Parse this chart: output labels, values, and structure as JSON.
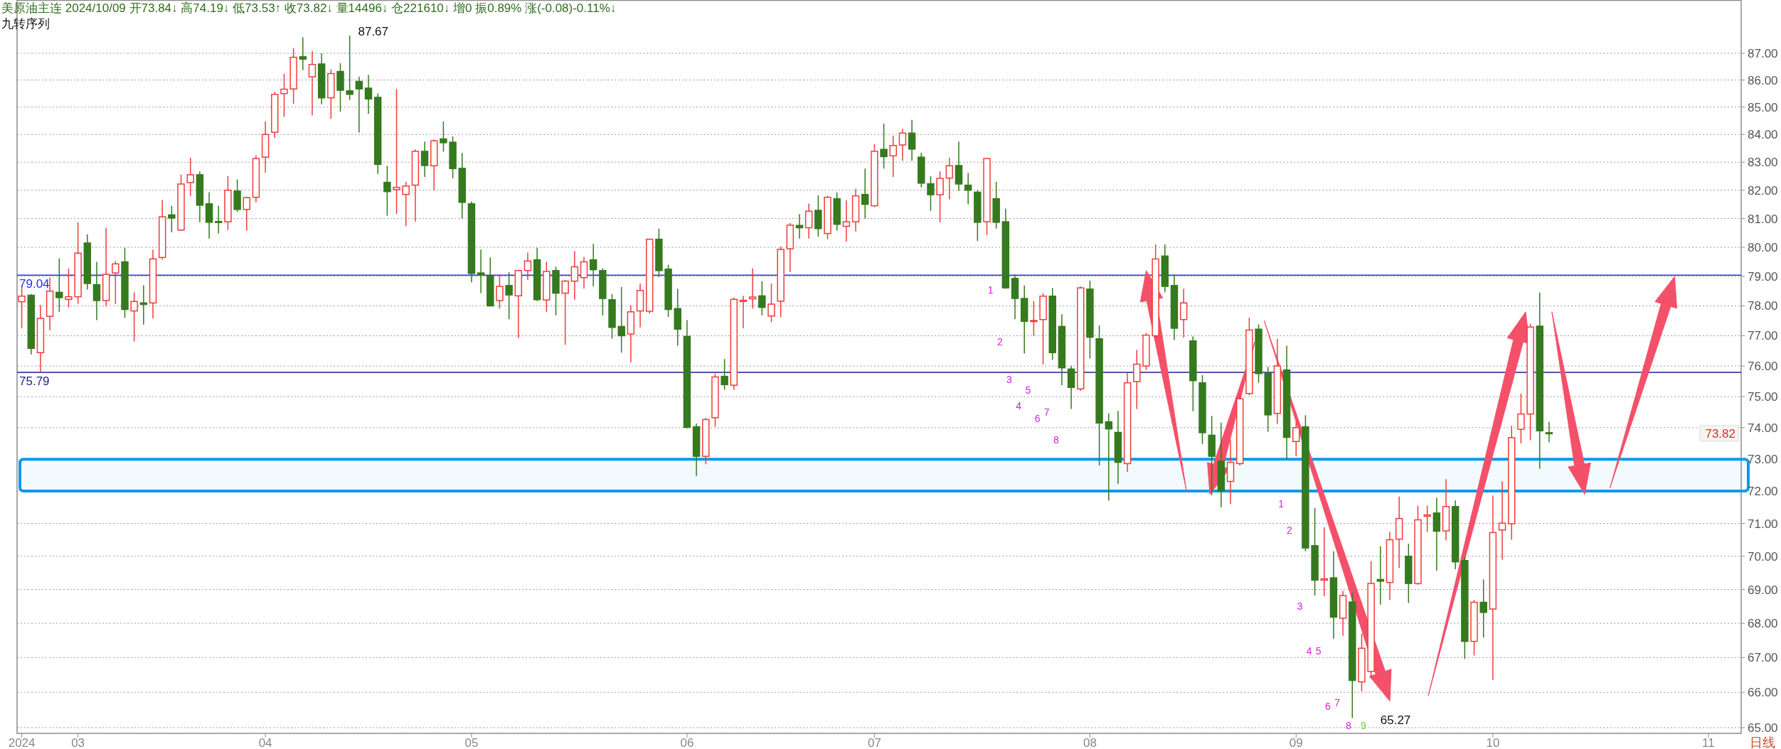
{
  "chart_data": {
    "type": "candlestick",
    "title": "美原油主连 2024/10/09 开73.84↓ 高74.19↓ 低73.53↑ 收73.82↓ 量14496↓ 仓221610↓ 增0 振0.89% 涨(-0.08)-0.11%↓",
    "subtitle": "九转序列",
    "categories": [
      "2024",
      null,
      null,
      null,
      null,
      null,
      "03",
      null,
      null,
      null,
      null,
      null,
      null,
      null,
      null,
      null,
      null,
      null,
      null,
      null,
      null,
      null,
      null,
      null,
      null,
      null,
      "04",
      null,
      null,
      null,
      null,
      null,
      null,
      null,
      null,
      null,
      null,
      null,
      null,
      null,
      null,
      null,
      null,
      null,
      null,
      null,
      null,
      null,
      "05",
      null,
      null,
      null,
      null,
      null,
      null,
      null,
      null,
      null,
      null,
      null,
      null,
      null,
      null,
      null,
      null,
      null,
      null,
      null,
      null,
      null,
      null,
      "06",
      null,
      null,
      null,
      null,
      null,
      null,
      null,
      null,
      null,
      null,
      null,
      null,
      null,
      null,
      null,
      null,
      null,
      null,
      null,
      "07",
      null,
      null,
      null,
      null,
      null,
      null,
      null,
      null,
      null,
      null,
      null,
      null,
      null,
      null,
      null,
      null,
      null,
      null,
      null,
      null,
      null,
      null,
      "08",
      null,
      null,
      null,
      null,
      null,
      null,
      null,
      null,
      null,
      null,
      null,
      null,
      null,
      null,
      null,
      null,
      null,
      null,
      null,
      null,
      null,
      "09",
      null,
      null,
      null,
      null,
      null,
      null,
      null,
      null,
      null,
      null,
      null,
      null,
      null,
      null,
      null,
      null,
      null,
      null,
      null,
      null,
      "10",
      null,
      null,
      null,
      null,
      null,
      null,
      null,
      null,
      null,
      null,
      null,
      null,
      null,
      null,
      null,
      null,
      null,
      null,
      null,
      null,
      null,
      null,
      "11",
      null,
      null,
      null
    ],
    "ohlc": [
      [
        78.14,
        78.7,
        77.25,
        78.33
      ],
      [
        78.36,
        78.4,
        76.38,
        76.58
      ],
      [
        76.44,
        78.03,
        75.8,
        77.58
      ],
      [
        77.65,
        78.96,
        77.18,
        78.5
      ],
      [
        78.46,
        79.62,
        77.8,
        78.28
      ],
      [
        78.22,
        79.27,
        77.95,
        78.31
      ],
      [
        78.31,
        80.87,
        78.07,
        79.8
      ],
      [
        80.15,
        80.45,
        78.55,
        78.76
      ],
      [
        78.72,
        79.5,
        77.52,
        78.18
      ],
      [
        78.18,
        80.68,
        77.98,
        79.07
      ],
      [
        79.12,
        79.53,
        78.06,
        79.43
      ],
      [
        79.5,
        79.98,
        77.6,
        77.88
      ],
      [
        77.83,
        78.46,
        76.81,
        78.15
      ],
      [
        78.1,
        78.7,
        77.37,
        78.05
      ],
      [
        78.1,
        79.92,
        77.58,
        79.6
      ],
      [
        79.65,
        81.65,
        79.57,
        81.06
      ],
      [
        81.13,
        81.45,
        80.52,
        81.02
      ],
      [
        80.6,
        82.55,
        80.57,
        82.22
      ],
      [
        82.27,
        83.16,
        81.8,
        82.55
      ],
      [
        82.55,
        82.67,
        80.87,
        81.47
      ],
      [
        81.52,
        81.93,
        80.3,
        80.87
      ],
      [
        80.9,
        81.45,
        80.48,
        80.88
      ],
      [
        80.89,
        82.5,
        80.6,
        82.0
      ],
      [
        81.97,
        82.38,
        81.24,
        81.32
      ],
      [
        81.32,
        81.77,
        80.58,
        81.74
      ],
      [
        81.75,
        83.25,
        81.57,
        83.13
      ],
      [
        83.18,
        84.47,
        82.63,
        84.0
      ],
      [
        84.08,
        85.56,
        83.87,
        85.47
      ],
      [
        85.5,
        86.24,
        84.64,
        85.66
      ],
      [
        85.67,
        87.2,
        85.12,
        86.85
      ],
      [
        86.87,
        87.6,
        86.37,
        86.78
      ],
      [
        86.12,
        87.08,
        84.7,
        86.58
      ],
      [
        86.6,
        87.0,
        85.1,
        85.34
      ],
      [
        85.34,
        86.4,
        84.57,
        86.24
      ],
      [
        86.32,
        86.63,
        84.83,
        85.62
      ],
      [
        85.6,
        87.67,
        85.26,
        85.47
      ],
      [
        85.95,
        86.12,
        84.07,
        85.67
      ],
      [
        85.7,
        86.19,
        84.75,
        85.3
      ],
      [
        85.36,
        85.5,
        82.58,
        82.92
      ],
      [
        82.28,
        82.87,
        81.1,
        81.95
      ],
      [
        82.02,
        85.67,
        81.16,
        82.1
      ],
      [
        81.85,
        82.3,
        80.74,
        82.15
      ],
      [
        82.18,
        83.46,
        80.9,
        83.39
      ],
      [
        83.39,
        83.74,
        82.47,
        82.88
      ],
      [
        82.87,
        83.82,
        82.0,
        83.77
      ],
      [
        83.84,
        84.47,
        83.38,
        83.7
      ],
      [
        83.72,
        83.93,
        82.42,
        82.77
      ],
      [
        82.78,
        83.33,
        81.0,
        81.57
      ],
      [
        81.52,
        81.6,
        78.8,
        79.1
      ],
      [
        79.12,
        79.92,
        78.43,
        79.05
      ],
      [
        79.02,
        79.65,
        77.98,
        78.0
      ],
      [
        78.18,
        79.07,
        77.91,
        78.66
      ],
      [
        78.69,
        79.15,
        77.55,
        78.37
      ],
      [
        78.34,
        79.23,
        76.92,
        79.2
      ],
      [
        79.2,
        79.82,
        78.88,
        79.53
      ],
      [
        79.57,
        79.98,
        78.16,
        78.21
      ],
      [
        78.2,
        79.5,
        77.8,
        79.17
      ],
      [
        79.2,
        79.33,
        77.68,
        78.43
      ],
      [
        78.43,
        78.88,
        76.7,
        78.84
      ],
      [
        78.84,
        79.87,
        78.21,
        79.33
      ],
      [
        78.96,
        79.67,
        78.58,
        79.5
      ],
      [
        79.57,
        80.12,
        78.66,
        79.23
      ],
      [
        79.2,
        79.28,
        77.68,
        78.25
      ],
      [
        78.21,
        78.4,
        76.9,
        77.28
      ],
      [
        77.31,
        78.64,
        76.44,
        77.0
      ],
      [
        77.06,
        78.02,
        76.12,
        77.8
      ],
      [
        77.83,
        78.76,
        77.28,
        78.52
      ],
      [
        77.82,
        80.31,
        77.74,
        80.28
      ],
      [
        80.28,
        80.65,
        78.98,
        79.2
      ],
      [
        79.25,
        79.4,
        77.63,
        77.88
      ],
      [
        77.91,
        78.58,
        76.67,
        77.22
      ],
      [
        76.98,
        77.52,
        73.98,
        74.01
      ],
      [
        74.03,
        74.13,
        72.47,
        73.09
      ],
      [
        73.09,
        74.32,
        72.84,
        74.26
      ],
      [
        74.32,
        75.75,
        74.03,
        75.64
      ],
      [
        75.66,
        76.23,
        75.22,
        75.39
      ],
      [
        75.37,
        78.28,
        75.22,
        78.22
      ],
      [
        78.15,
        78.34,
        77.25,
        78.19
      ],
      [
        78.24,
        79.28,
        77.91,
        78.3
      ],
      [
        78.34,
        78.84,
        77.68,
        77.95
      ],
      [
        77.66,
        78.76,
        77.45,
        78.06
      ],
      [
        78.16,
        80.03,
        77.62,
        79.93
      ],
      [
        79.95,
        80.84,
        79.15,
        80.77
      ],
      [
        80.76,
        81.16,
        80.3,
        80.68
      ],
      [
        80.68,
        81.53,
        80.3,
        81.26
      ],
      [
        81.29,
        81.82,
        80.37,
        80.65
      ],
      [
        80.48,
        81.8,
        80.28,
        81.75
      ],
      [
        81.7,
        81.92,
        80.58,
        80.8
      ],
      [
        80.73,
        81.64,
        80.2,
        80.89
      ],
      [
        80.89,
        82.05,
        80.55,
        81.8
      ],
      [
        81.85,
        82.77,
        81.0,
        81.5
      ],
      [
        81.45,
        83.65,
        81.4,
        83.39
      ],
      [
        83.46,
        84.39,
        82.77,
        83.2
      ],
      [
        83.23,
        83.95,
        82.47,
        83.6
      ],
      [
        83.62,
        84.2,
        83.05,
        84.05
      ],
      [
        84.05,
        84.53,
        83.05,
        83.47
      ],
      [
        83.18,
        83.34,
        82.1,
        82.25
      ],
      [
        82.23,
        82.5,
        81.27,
        81.84
      ],
      [
        81.84,
        82.67,
        80.87,
        82.42
      ],
      [
        82.43,
        83.16,
        81.68,
        82.87
      ],
      [
        82.88,
        83.74,
        81.97,
        82.22
      ],
      [
        82.18,
        82.62,
        81.5,
        82.0
      ],
      [
        81.93,
        82.0,
        80.22,
        80.87
      ],
      [
        80.89,
        83.16,
        80.43,
        83.13
      ],
      [
        81.7,
        82.3,
        80.65,
        80.87
      ],
      [
        80.89,
        81.35,
        78.58,
        78.61
      ],
      [
        78.93,
        79.07,
        77.55,
        78.25
      ],
      [
        78.25,
        78.69,
        76.41,
        77.48
      ],
      [
        77.48,
        78.16,
        77.0,
        77.51
      ],
      [
        77.54,
        78.43,
        76.05,
        78.33
      ],
      [
        78.33,
        78.61,
        76.2,
        76.44
      ],
      [
        77.31,
        77.72,
        75.37,
        75.94
      ],
      [
        75.9,
        76.0,
        74.6,
        75.3
      ],
      [
        75.25,
        78.66,
        75.19,
        78.61
      ],
      [
        78.57,
        78.86,
        76.25,
        76.95
      ],
      [
        76.9,
        77.34,
        72.8,
        74.15
      ],
      [
        74.19,
        74.46,
        71.7,
        73.96
      ],
      [
        73.85,
        74.54,
        72.23,
        72.9
      ],
      [
        72.86,
        75.79,
        72.6,
        75.45
      ],
      [
        75.49,
        76.53,
        74.6,
        76.06
      ],
      [
        76.0,
        77.09,
        75.87,
        77.02
      ],
      [
        77.0,
        80.1,
        76.9,
        79.6
      ],
      [
        79.7,
        80.1,
        78.46,
        78.66
      ],
      [
        78.69,
        79.07,
        76.86,
        77.25
      ],
      [
        77.54,
        78.58,
        76.94,
        78.1
      ],
      [
        76.83,
        76.98,
        74.53,
        75.52
      ],
      [
        75.45,
        75.7,
        73.48,
        73.84
      ],
      [
        73.76,
        74.38,
        71.87,
        73.09
      ],
      [
        72.94,
        74.16,
        71.5,
        72.01
      ],
      [
        72.3,
        73.6,
        71.6,
        72.9
      ],
      [
        72.86,
        75.08,
        72.8,
        74.93
      ],
      [
        75.1,
        77.6,
        75.05,
        77.19
      ],
      [
        77.22,
        77.38,
        75.45,
        75.75
      ],
      [
        75.75,
        75.97,
        73.87,
        74.41
      ],
      [
        74.46,
        76.9,
        74.12,
        76.0
      ],
      [
        75.87,
        76.67,
        73.01,
        73.69
      ],
      [
        73.56,
        74.18,
        73.09,
        74.0
      ],
      [
        74.03,
        74.4,
        70.15,
        70.25
      ],
      [
        70.32,
        71.47,
        68.82,
        69.28
      ],
      [
        69.28,
        70.88,
        68.8,
        69.32
      ],
      [
        69.35,
        70.15,
        67.55,
        68.18
      ],
      [
        68.15,
        68.96,
        67.63,
        68.82
      ],
      [
        68.63,
        68.9,
        65.27,
        66.34
      ],
      [
        66.3,
        67.7,
        66.03,
        67.27
      ],
      [
        66.6,
        69.85,
        66.4,
        69.18
      ],
      [
        69.3,
        70.3,
        68.55,
        69.25
      ],
      [
        69.21,
        70.74,
        68.69,
        70.5
      ],
      [
        70.52,
        71.83,
        69.65,
        71.15
      ],
      [
        70.0,
        70.38,
        68.6,
        69.18
      ],
      [
        69.18,
        71.55,
        69.14,
        71.11
      ],
      [
        71.22,
        71.55,
        70.74,
        71.26
      ],
      [
        71.32,
        71.79,
        69.56,
        70.76
      ],
      [
        70.77,
        72.37,
        70.48,
        71.52
      ],
      [
        71.52,
        71.71,
        69.61,
        69.83
      ],
      [
        69.87,
        69.97,
        66.96,
        67.47
      ],
      [
        67.47,
        68.69,
        67.06,
        68.62
      ],
      [
        68.62,
        69.3,
        67.58,
        68.32
      ],
      [
        68.42,
        71.86,
        66.35,
        70.72
      ],
      [
        70.8,
        72.3,
        69.9,
        71.01
      ],
      [
        70.99,
        74.06,
        70.5,
        73.68
      ],
      [
        73.95,
        75.1,
        73.5,
        74.44
      ],
      [
        74.44,
        77.4,
        73.6,
        77.29
      ],
      [
        77.32,
        78.45,
        72.7,
        73.9
      ],
      [
        73.84,
        74.19,
        73.53,
        73.82
      ],
      null,
      null,
      null,
      null,
      null,
      null,
      null,
      null,
      null,
      null,
      null,
      null,
      null,
      null,
      null,
      null,
      null,
      null,
      null,
      null
    ],
    "colors": [
      "#f03c3c",
      "#357a1e",
      "#f03c3c",
      "#f03c3c",
      "#357a1e",
      "#f03c3c",
      "#f03c3c",
      "#357a1e",
      "#357a1e",
      "#f03c3c",
      "#f03c3c",
      "#357a1e",
      "#f03c3c",
      "#357a1e",
      "#f03c3c",
      "#f03c3c",
      "#357a1e",
      "#f03c3c",
      "#f03c3c",
      "#357a1e",
      "#357a1e",
      "#357a1e",
      "#f03c3c",
      "#357a1e",
      "#f03c3c",
      "#f03c3c",
      "#f03c3c",
      "#f03c3c",
      "#f03c3c",
      "#f03c3c",
      "#357a1e",
      "#f03c3c",
      "#357a1e",
      "#f03c3c",
      "#357a1e",
      "#357a1e",
      "#357a1e",
      "#357a1e",
      "#357a1e",
      "#357a1e",
      "#f03c3c",
      "#f03c3c",
      "#f03c3c",
      "#357a1e",
      "#f03c3c",
      "#357a1e",
      "#357a1e",
      "#357a1e",
      "#357a1e",
      "#357a1e",
      "#357a1e",
      "#f03c3c",
      "#357a1e",
      "#f03c3c",
      "#f03c3c",
      "#357a1e",
      "#f03c3c",
      "#357a1e",
      "#f03c3c",
      "#f03c3c",
      "#f03c3c",
      "#357a1e",
      "#357a1e",
      "#357a1e",
      "#357a1e",
      "#f03c3c",
      "#f03c3c",
      "#f03c3c",
      "#357a1e",
      "#357a1e",
      "#357a1e",
      "#357a1e",
      "#357a1e",
      "#f03c3c",
      "#f03c3c",
      "#357a1e",
      "#f03c3c",
      "#f03c3c",
      "#f03c3c",
      "#357a1e",
      "#f03c3c",
      "#f03c3c",
      "#f03c3c",
      "#357a1e",
      "#f03c3c",
      "#357a1e",
      "#f03c3c",
      "#357a1e",
      "#f03c3c",
      "#f03c3c",
      "#357a1e",
      "#f03c3c",
      "#357a1e",
      "#f03c3c",
      "#f03c3c",
      "#357a1e",
      "#357a1e",
      "#357a1e",
      "#f03c3c",
      "#f03c3c",
      "#357a1e",
      "#357a1e",
      "#357a1e",
      "#f03c3c",
      "#357a1e",
      "#357a1e",
      "#357a1e",
      "#357a1e",
      "#f03c3c",
      "#f03c3c",
      "#357a1e",
      "#357a1e",
      "#357a1e",
      "#f03c3c",
      "#357a1e",
      "#357a1e",
      "#357a1e",
      "#357a1e",
      "#f03c3c",
      "#f03c3c",
      "#f03c3c",
      "#f03c3c",
      "#357a1e",
      "#357a1e",
      "#f03c3c",
      "#357a1e",
      "#357a1e",
      "#357a1e",
      "#357a1e",
      "#f03c3c",
      "#f03c3c",
      "#f03c3c",
      "#357a1e",
      "#357a1e",
      "#f03c3c",
      "#357a1e",
      "#f03c3c",
      "#357a1e",
      "#357a1e",
      "#f03c3c",
      "#357a1e",
      "#f03c3c",
      "#357a1e",
      "#f03c3c",
      "#f03c3c",
      "#357a1e",
      "#f03c3c",
      "#f03c3c",
      "#357a1e",
      "#f03c3c",
      "#f03c3c",
      "#357a1e",
      "#f03c3c",
      "#357a1e",
      "#357a1e",
      "#f03c3c",
      "#357a1e",
      "#f03c3c",
      "#f03c3c",
      "#f03c3c",
      "#f03c3c",
      "#f03c3c",
      "#357a1e",
      "#357a1e",
      null,
      null,
      null,
      null,
      null,
      null,
      null,
      null,
      null,
      null,
      null,
      null,
      null,
      null,
      null,
      null,
      null,
      null,
      null,
      null
    ],
    "ylim": [
      64.84,
      89.0
    ],
    "yticks": [
      {
        "value": 65,
        "label": "65.00"
      },
      {
        "value": 66,
        "label": "66.00"
      },
      {
        "value": 67,
        "label": "67.00"
      },
      {
        "value": 68,
        "label": "68.00"
      },
      {
        "value": 69,
        "label": "69.00"
      },
      {
        "value": 70,
        "label": "70.00"
      },
      {
        "value": 71,
        "label": "71.00"
      },
      {
        "value": 72,
        "label": "72.00"
      },
      {
        "value": 73,
        "label": "73.00"
      },
      {
        "value": 74,
        "label": "74.00"
      },
      {
        "value": 75,
        "label": "75.00"
      },
      {
        "value": 76,
        "label": "76.00"
      },
      {
        "value": 77,
        "label": "77.00"
      },
      {
        "value": 78,
        "label": "78.00"
      },
      {
        "value": 79,
        "label": "79.00"
      },
      {
        "value": 80,
        "label": "80.00"
      },
      {
        "value": 81,
        "label": "81.00"
      },
      {
        "value": 82,
        "label": "82.00"
      },
      {
        "value": 83,
        "label": "83.00"
      },
      {
        "value": 84,
        "label": "84.00"
      },
      {
        "value": 85,
        "label": "85.00"
      },
      {
        "value": 86,
        "label": "86.00"
      },
      {
        "value": 87,
        "label": "87.00"
      }
    ],
    "log": true,
    "grid": "y",
    "ref_lines": [
      {
        "axis": "y",
        "value": 79.04,
        "label": "79.04",
        "color": "#2a2aff"
      },
      {
        "axis": "y",
        "value": 75.79,
        "label": "75.79",
        "color": "#1c1c8c"
      }
    ],
    "bands": [
      {
        "axis": "y",
        "from": 72,
        "to": 73,
        "color": "#0a98ec"
      }
    ],
    "annotations": [
      "87.67",
      "65.27",
      "73.82",
      "1",
      "2",
      "3",
      "4",
      "5",
      "6",
      "7",
      "8",
      "1",
      "2",
      "3",
      "4",
      "5",
      "6",
      "7",
      "8",
      "9",
      "日线"
    ]
  }
}
